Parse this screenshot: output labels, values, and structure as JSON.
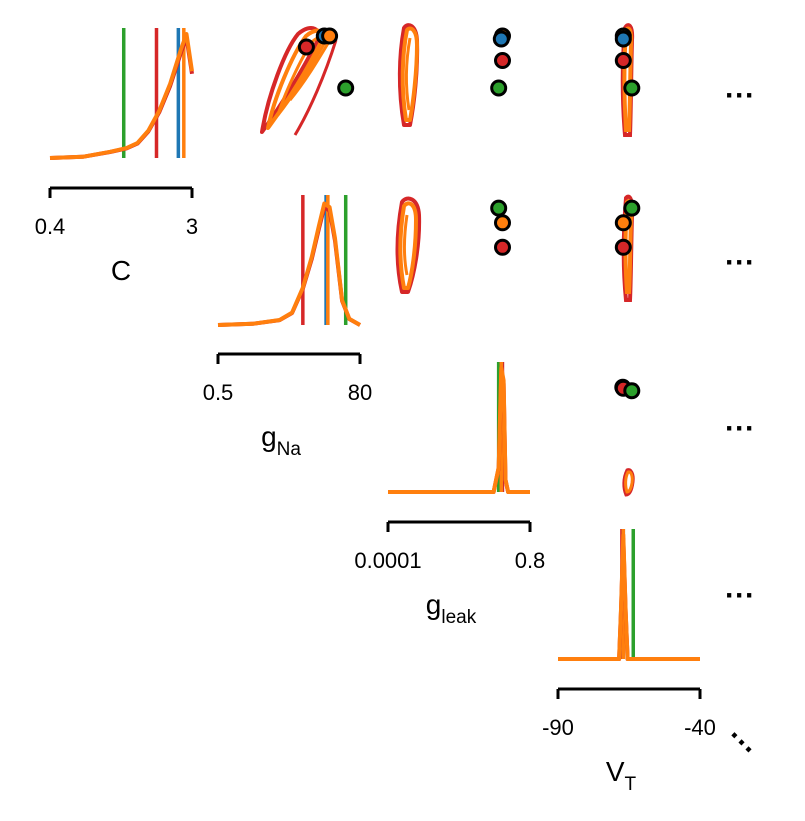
{
  "chart_data": {
    "type": "pairplot",
    "parameters": [
      {
        "name": "C",
        "sub": "",
        "range": [
          0.4,
          3
        ],
        "tick_labels": [
          "0.4",
          "3"
        ]
      },
      {
        "name": "g",
        "sub": "Na",
        "range": [
          0.5,
          80
        ],
        "tick_labels": [
          "0.5",
          "80"
        ]
      },
      {
        "name": "g",
        "sub": "leak",
        "range": [
          0.0001,
          0.8
        ],
        "tick_labels": [
          "0.0001",
          "0.8"
        ]
      },
      {
        "name": "V",
        "sub": "T",
        "range": [
          -90,
          -40
        ],
        "tick_labels": [
          "-90",
          "-40"
        ]
      }
    ],
    "colors": {
      "red": "#d62728",
      "orange": "#ff7f0e",
      "blue": "#1f77b4",
      "green": "#2ca02c",
      "outline": "#000000"
    },
    "marginals": [
      {
        "param": "C",
        "red_vline": 2.35,
        "blue_vline": 2.75,
        "orange_vline": 2.85,
        "green_vline": 1.75,
        "density_x": [
          0.4,
          1.0,
          1.5,
          1.8,
          2.0,
          2.2,
          2.4,
          2.6,
          2.8,
          2.9,
          3.0
        ],
        "density_y": [
          0.0,
          0.01,
          0.05,
          0.08,
          0.12,
          0.22,
          0.38,
          0.6,
          0.88,
          1.0,
          0.7
        ]
      },
      {
        "param": "g_Na",
        "red_vline": 48,
        "blue_vline": 61,
        "orange_vline": 62,
        "green_vline": 72,
        "density_x": [
          0.5,
          20,
          35,
          42,
          48,
          53,
          57,
          60,
          63,
          66,
          70,
          74,
          80
        ],
        "density_y": [
          0.0,
          0.01,
          0.04,
          0.1,
          0.3,
          0.55,
          0.8,
          0.98,
          0.95,
          0.7,
          0.2,
          0.05,
          0.0
        ]
      },
      {
        "param": "g_leak",
        "red_vline": 0.14,
        "blue_vline": 0.13,
        "orange_vline": 0.13,
        "green_vline": 0.11,
        "density_x": [
          0.0001,
          0.08,
          0.11,
          0.13,
          0.15,
          0.17,
          0.2,
          0.8
        ],
        "density_y": [
          0.0,
          0.0,
          0.2,
          1.0,
          0.9,
          0.1,
          0.0,
          0.0
        ]
      },
      {
        "param": "V_T",
        "red_vline": -67.5,
        "blue_vline": -67,
        "orange_vline": -67,
        "green_vline": -63.5,
        "density_x": [
          -90,
          -68.5,
          -67.8,
          -67,
          -66.2,
          -65.5,
          -40
        ],
        "density_y": [
          0.0,
          0.0,
          0.4,
          1.0,
          0.4,
          0.0,
          0.0
        ]
      }
    ],
    "pair_points": [
      {
        "row": 0,
        "col": 1,
        "points": [
          {
            "color": "red",
            "x": 50,
            "y": 2.62
          },
          {
            "color": "blue",
            "x": 60,
            "y": 2.84
          },
          {
            "color": "orange",
            "x": 63,
            "y": 2.88
          },
          {
            "color": "green",
            "x": 72,
            "y": 1.8
          }
        ]
      },
      {
        "row": 0,
        "col": 2,
        "points": [
          {
            "color": "orange",
            "x": 0.14,
            "y": 2.88
          },
          {
            "color": "red",
            "x": 0.14,
            "y": 2.35
          },
          {
            "color": "blue",
            "x": 0.13,
            "y": 2.78
          },
          {
            "color": "green",
            "x": 0.11,
            "y": 1.8
          }
        ]
      },
      {
        "row": 0,
        "col": 3,
        "points": [
          {
            "color": "orange",
            "x": -67,
            "y": 2.88
          },
          {
            "color": "blue",
            "x": -67,
            "y": 2.78
          },
          {
            "color": "red",
            "x": -67,
            "y": 2.35
          },
          {
            "color": "green",
            "x": -64,
            "y": 1.8
          }
        ]
      },
      {
        "row": 1,
        "col": 2,
        "points": [
          {
            "color": "green",
            "x": 0.11,
            "y": 72
          },
          {
            "color": "orange",
            "x": 0.14,
            "y": 63
          },
          {
            "color": "red",
            "x": 0.14,
            "y": 48
          }
        ]
      },
      {
        "row": 1,
        "col": 3,
        "points": [
          {
            "color": "green",
            "x": -64,
            "y": 72
          },
          {
            "color": "orange",
            "x": -67,
            "y": 63
          },
          {
            "color": "red",
            "x": -67,
            "y": 48
          }
        ]
      },
      {
        "row": 2,
        "col": 3,
        "points": [
          {
            "color": "orange",
            "x": -67.2,
            "y": 0.14
          },
          {
            "color": "red",
            "x": -67,
            "y": 0.13
          },
          {
            "color": "green",
            "x": -64,
            "y": 0.11
          }
        ]
      }
    ],
    "continuation_mark": "···",
    "grid": false,
    "legend": "none"
  }
}
